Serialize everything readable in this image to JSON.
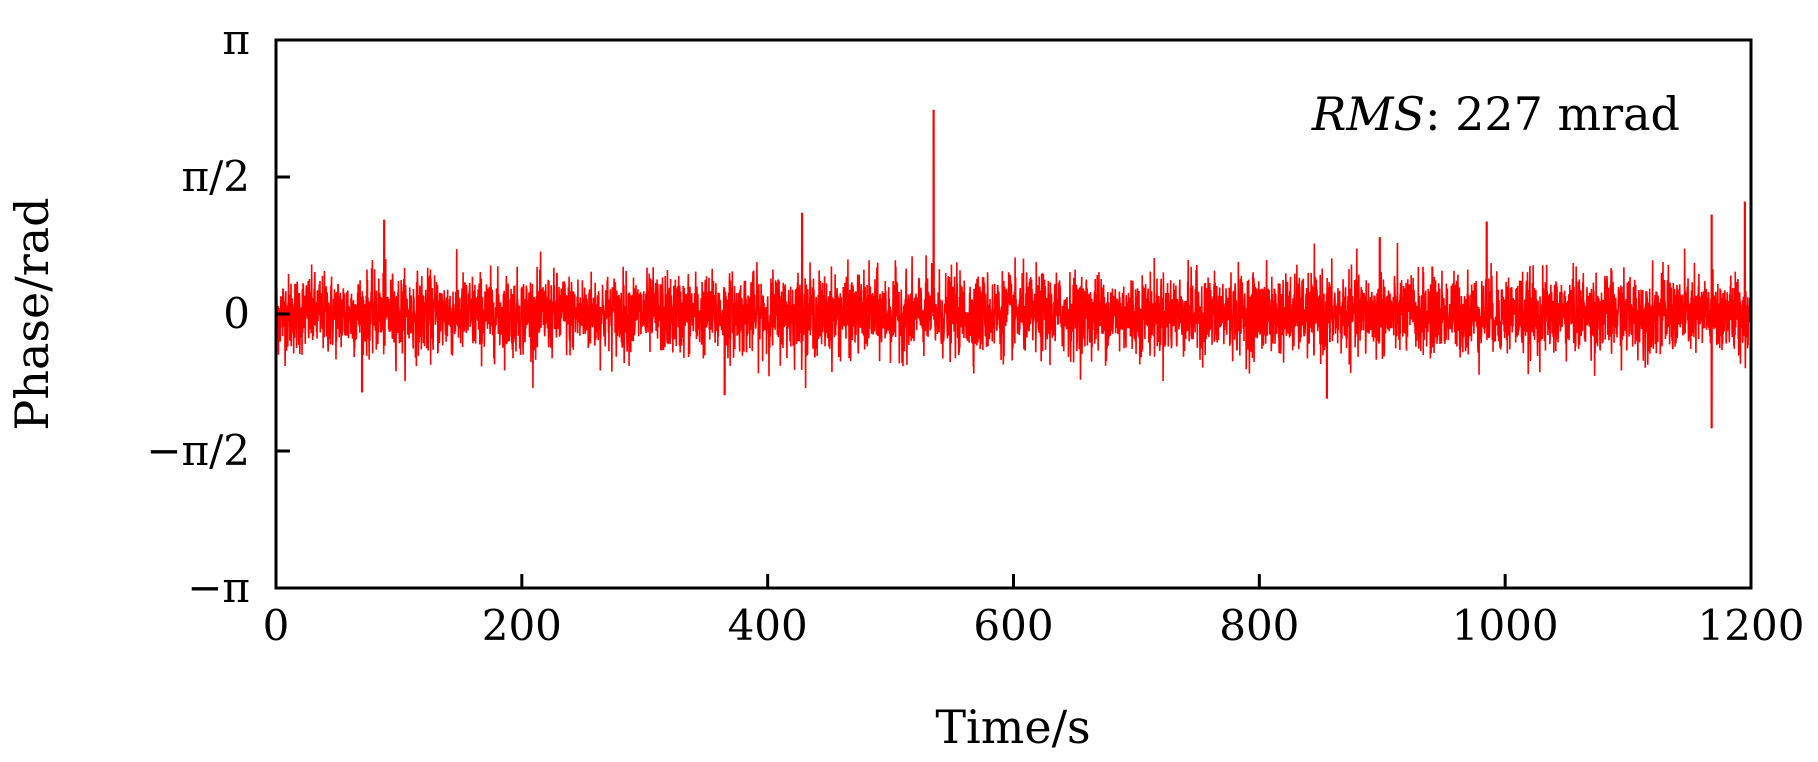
{
  "chart_data": {
    "type": "line",
    "title": "",
    "xlabel": "Time/s",
    "ylabel": "Phase/rad",
    "xlim": [
      0,
      1200
    ],
    "ylim": [
      -3.14159,
      3.14159
    ],
    "x_ticks": [
      {
        "value": 0,
        "label": "0"
      },
      {
        "value": 200,
        "label": "200"
      },
      {
        "value": 400,
        "label": "400"
      },
      {
        "value": 600,
        "label": "600"
      },
      {
        "value": 800,
        "label": "800"
      },
      {
        "value": 1000,
        "label": "1000"
      },
      {
        "value": 1200,
        "label": "1200"
      }
    ],
    "y_ticks": [
      {
        "value": -3.14159,
        "label": "−π"
      },
      {
        "value": -1.5708,
        "label": "−π/2"
      },
      {
        "value": 0,
        "label": "0"
      },
      {
        "value": 1.5708,
        "label": "π/2"
      },
      {
        "value": 3.14159,
        "label": "π"
      }
    ],
    "grid": false,
    "annotation": {
      "name_italic": "RMS",
      "rest": ": 227 mrad"
    },
    "series": [
      {
        "color": "#ff0000",
        "noise": {
          "x_start": 0,
          "x_end": 1200,
          "samples": 6000,
          "rms_rad": 0.227
        },
        "marked_points": [
          {
            "x": 88,
            "y": 1.08
          },
          {
            "x": 70,
            "y": -0.9
          },
          {
            "x": 365,
            "y": -0.93
          },
          {
            "x": 428,
            "y": 1.16
          },
          {
            "x": 535,
            "y": 2.34
          },
          {
            "x": 855,
            "y": -0.97
          },
          {
            "x": 898,
            "y": 0.88
          },
          {
            "x": 985,
            "y": 1.06
          },
          {
            "x": 1168,
            "y": 1.14
          },
          {
            "x": 1168,
            "y": -1.31
          },
          {
            "x": 1195,
            "y": 1.29
          }
        ]
      }
    ]
  }
}
